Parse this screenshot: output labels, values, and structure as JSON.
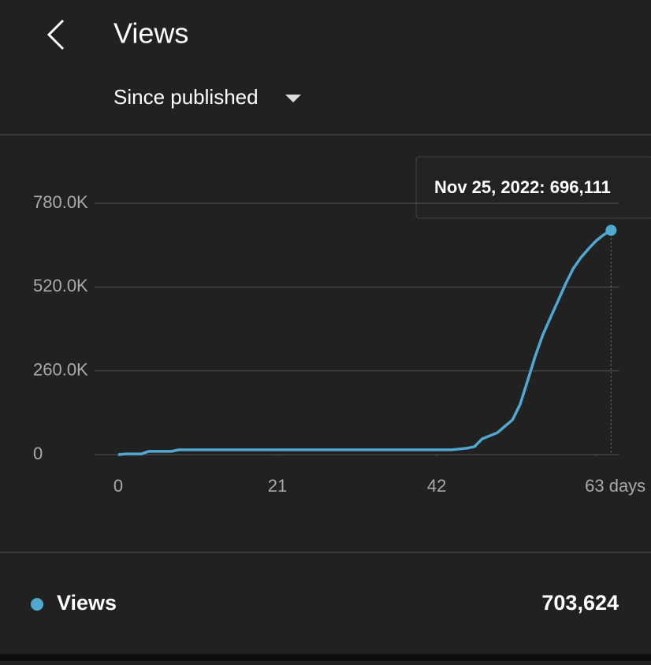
{
  "header": {
    "title": "Views",
    "filter": "Since published"
  },
  "chart_data": {
    "type": "line",
    "x": [
      0,
      1,
      3,
      4,
      7,
      8,
      44,
      46,
      47,
      48,
      50,
      52,
      53,
      54,
      55,
      56,
      57,
      58,
      59,
      60,
      61,
      62,
      63,
      64,
      65
    ],
    "series": [
      {
        "name": "Views",
        "color": "#4fa8d1",
        "values": [
          0,
          2000,
          2000,
          10000,
          10000,
          15000,
          15000,
          20000,
          25000,
          49000,
          68000,
          108000,
          156000,
          230000,
          306000,
          372000,
          425000,
          477000,
          530000,
          577000,
          611000,
          638000,
          663000,
          682000,
          696111
        ]
      }
    ],
    "xlim": [
      0,
      66
    ],
    "xticks": [
      0,
      21,
      42,
      {
        "value": 63,
        "label": "63 days"
      }
    ],
    "ylim": [
      0,
      780000
    ],
    "yticks": [
      0,
      {
        "value": 260000,
        "label": "260.0K"
      },
      {
        "value": 520000,
        "label": "520.0K"
      },
      {
        "value": 780000,
        "label": "780.0K"
      }
    ],
    "grid": true
  },
  "tooltip": {
    "label": "Nov 25, 2022: 696,111"
  },
  "summary": {
    "total": "703,624"
  }
}
